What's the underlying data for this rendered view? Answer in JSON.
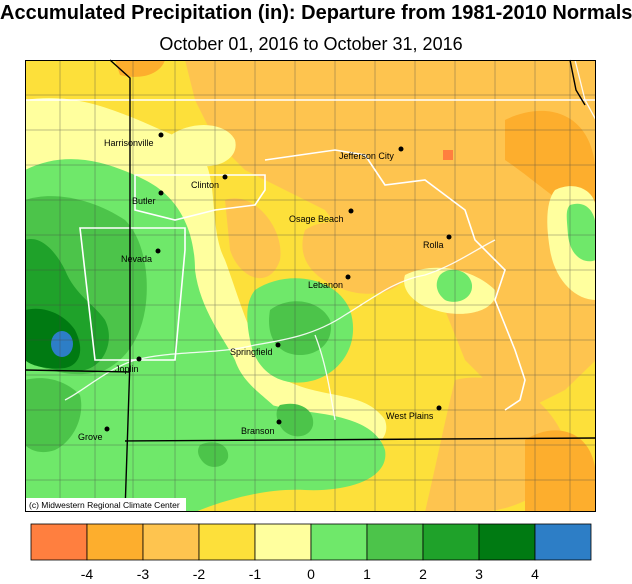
{
  "title": "Accumulated Precipitation (in): Departure from 1981-2010 Normals",
  "subtitle": "October 01, 2016 to October 31, 2016",
  "credit": "(c) Midwestern Regional Climate Center",
  "cities": [
    {
      "name": "Harrisonville"
    },
    {
      "name": "Clinton"
    },
    {
      "name": "Butler"
    },
    {
      "name": "Jefferson City"
    },
    {
      "name": "Osage Beach"
    },
    {
      "name": "Rolla"
    },
    {
      "name": "Nevada"
    },
    {
      "name": "Lebanon"
    },
    {
      "name": "Springfield"
    },
    {
      "name": "Joplin"
    },
    {
      "name": "West Plains"
    },
    {
      "name": "Branson"
    },
    {
      "name": "Grove"
    }
  ],
  "legend": {
    "bins": [
      {
        "color": "#ff7f3f"
      },
      {
        "color": "#fdae2d"
      },
      {
        "color": "#fec44f"
      },
      {
        "color": "#fde03a"
      },
      {
        "color": "#ffff9e"
      },
      {
        "color": "#6fe86a"
      },
      {
        "color": "#4cc44a"
      },
      {
        "color": "#1fa22a"
      },
      {
        "color": "#007a12"
      },
      {
        "color": "#2d7ec6"
      }
    ],
    "ticks": [
      "-4",
      "-3",
      "-2",
      "-1",
      "0",
      "1",
      "2",
      "3",
      "4"
    ]
  }
}
